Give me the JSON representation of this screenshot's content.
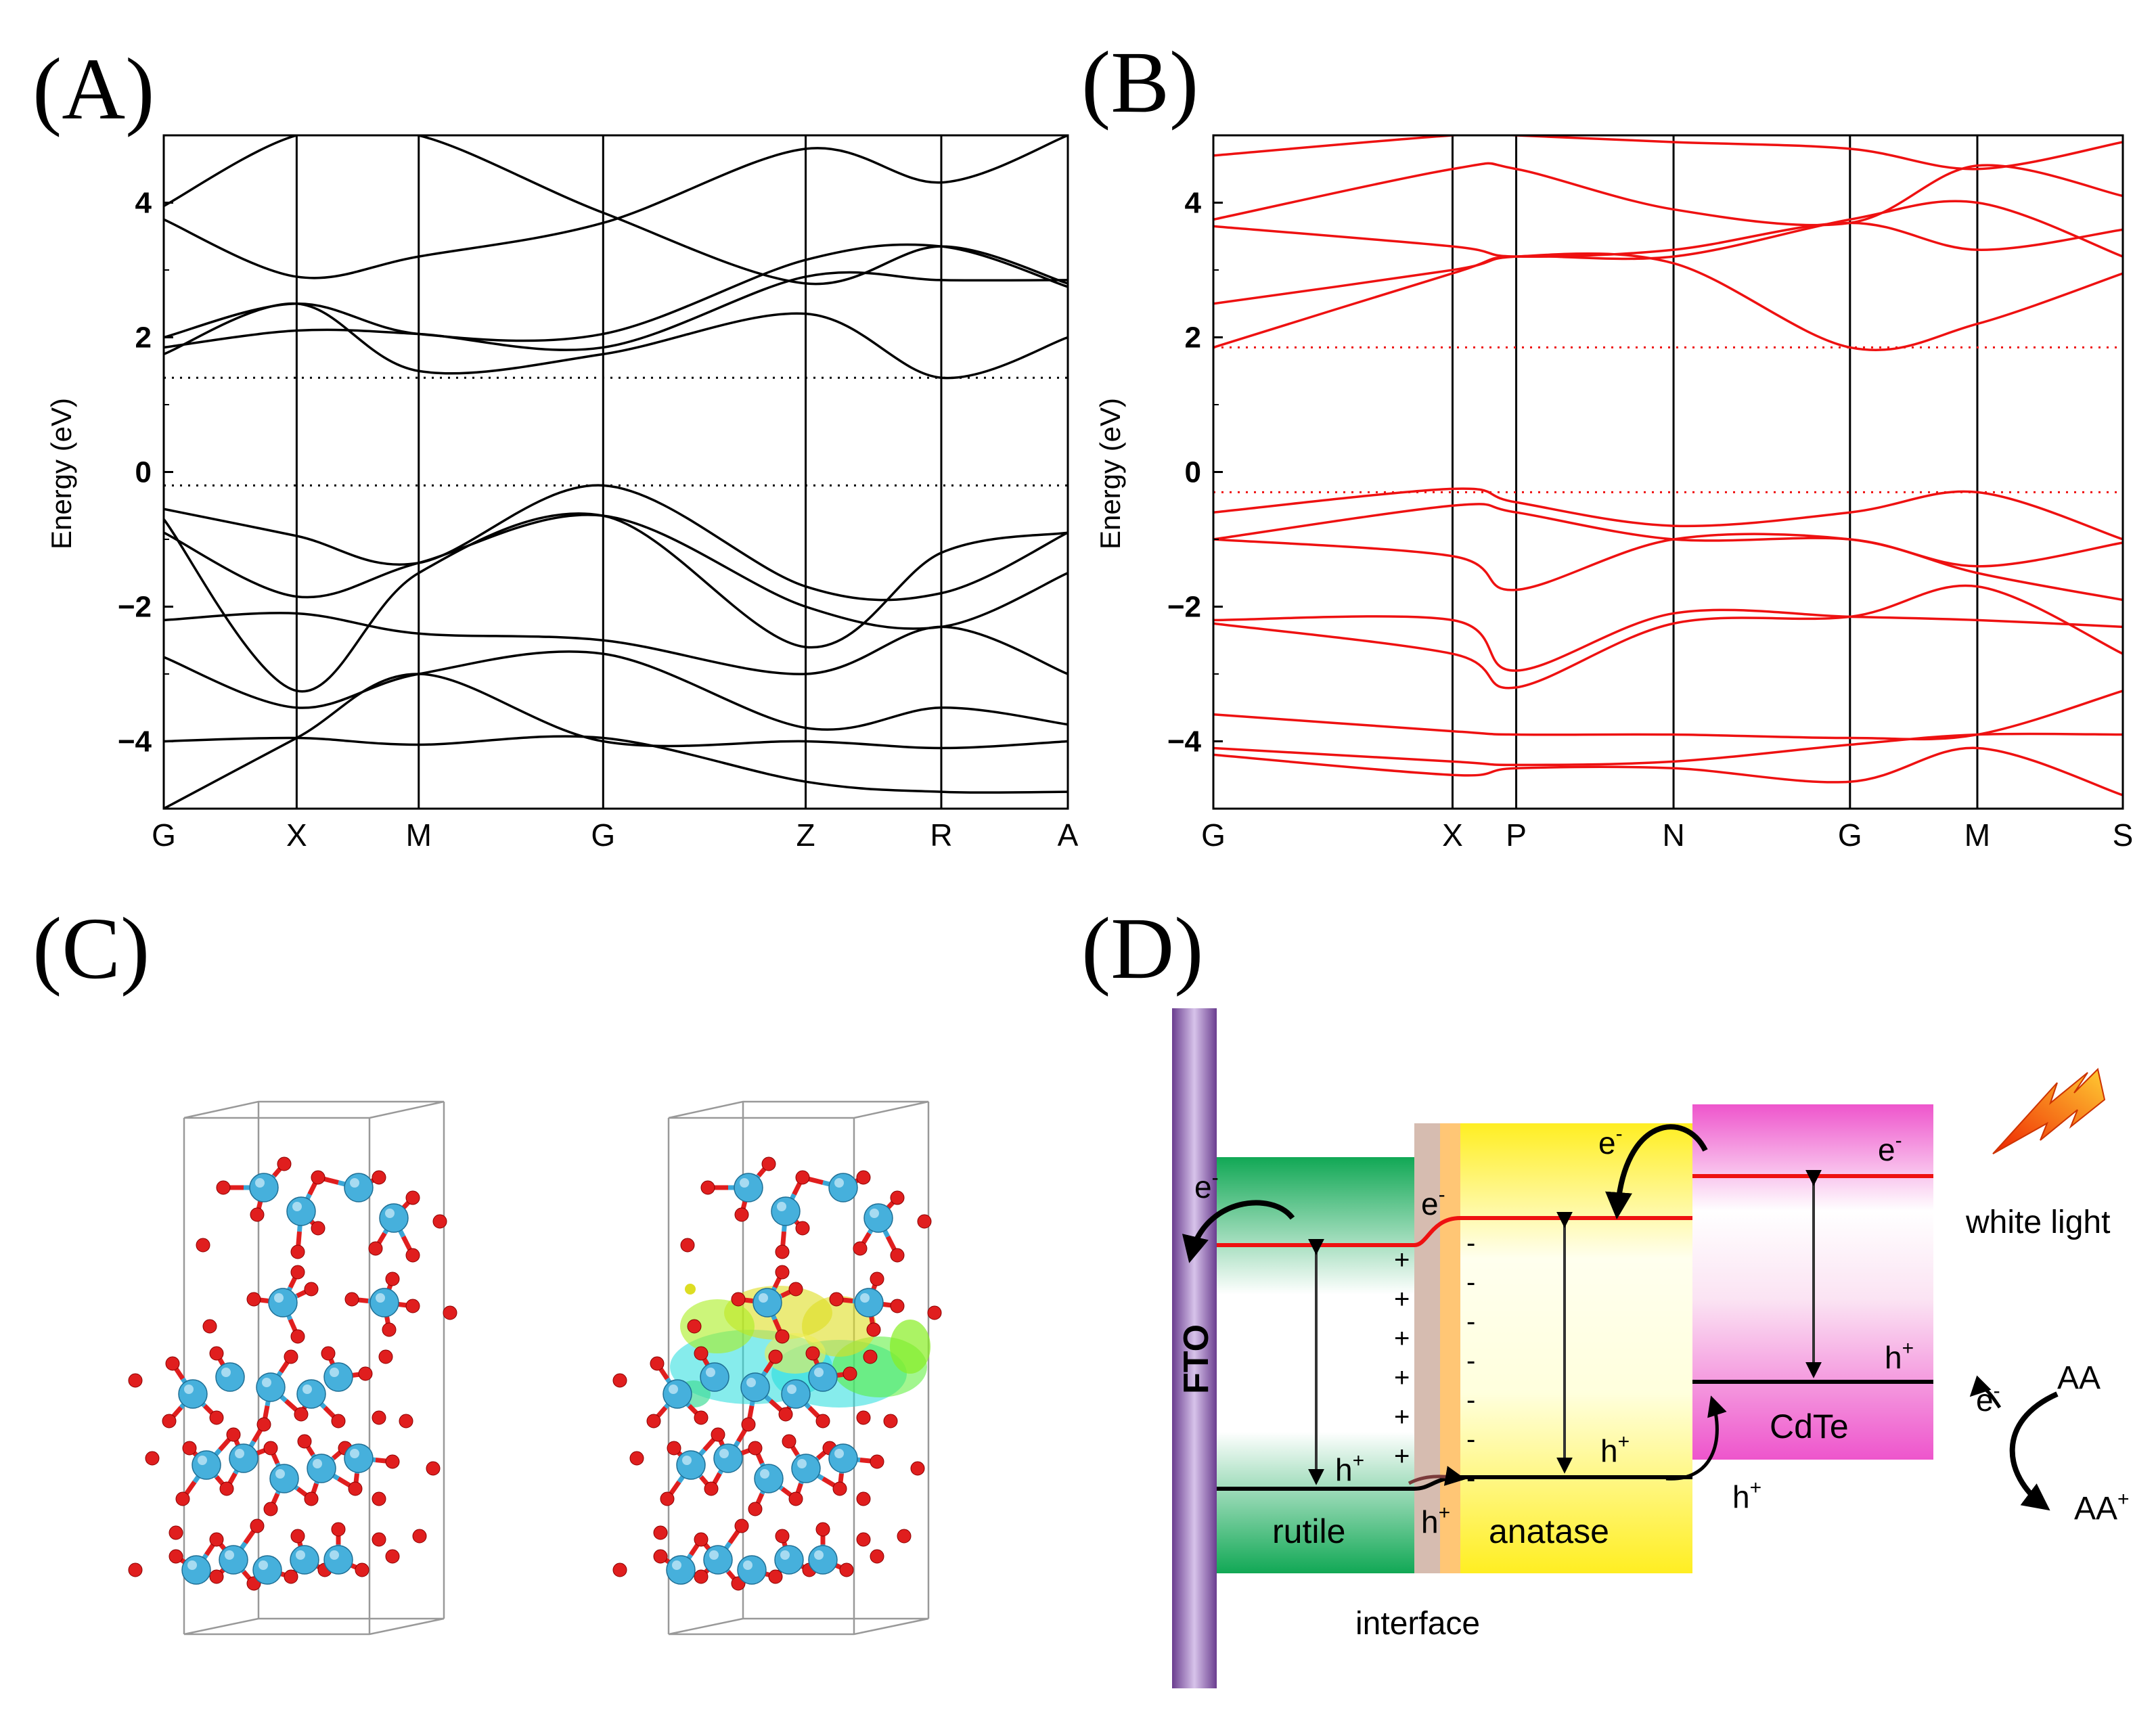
{
  "panels": {
    "a": {
      "label": "(A)"
    },
    "b": {
      "label": "(B)"
    },
    "c": {
      "label": "(C)"
    },
    "d": {
      "label": "(D)"
    }
  },
  "chart_data": [
    {
      "id": "band-structure-rutile",
      "type": "line",
      "title": "",
      "ylabel": "Energy (eV)",
      "xlabel": "",
      "ylim": [
        -5,
        5
      ],
      "yticks": [
        4,
        2,
        0,
        -2,
        -4
      ],
      "ytick_labels": [
        "4",
        "2",
        "0",
        "−2",
        "−4"
      ],
      "kpoints": [
        "G",
        "X",
        "M",
        "G",
        "Z",
        "R",
        "A"
      ],
      "kpoint_x": [
        0,
        0.147,
        0.282,
        0.486,
        0.71,
        0.86,
        1.0
      ],
      "fermi_lines": [
        1.4,
        -0.2
      ],
      "color": "#000000",
      "series": [
        {
          "name": "v1",
          "x": [
            0,
            0.147,
            0.282,
            0.486,
            0.71,
            0.86,
            1.0
          ],
          "y": [
            -0.55,
            -0.95,
            -1.35,
            -0.2,
            -1.7,
            -1.8,
            -0.9
          ]
        },
        {
          "name": "v2",
          "x": [
            0,
            0.147,
            0.282,
            0.486,
            0.71,
            0.86,
            1.0
          ],
          "y": [
            -0.9,
            -1.85,
            -1.35,
            -0.65,
            -2.0,
            -2.3,
            -1.5
          ]
        },
        {
          "name": "v3",
          "x": [
            0,
            0.147,
            0.282,
            0.486,
            0.71,
            0.86,
            1.0
          ],
          "y": [
            -0.7,
            -3.25,
            -1.5,
            -0.65,
            -2.6,
            -1.2,
            -0.9
          ]
        },
        {
          "name": "v4",
          "x": [
            0,
            0.147,
            0.282,
            0.486,
            0.71,
            0.86,
            1.0
          ],
          "y": [
            -2.2,
            -2.1,
            -2.4,
            -2.5,
            -3.0,
            -2.3,
            -3.0
          ]
        },
        {
          "name": "v5",
          "x": [
            0,
            0.147,
            0.282,
            0.486,
            0.71,
            0.86,
            1.0
          ],
          "y": [
            -2.75,
            -3.5,
            -3.0,
            -2.7,
            -3.8,
            -3.5,
            -3.75
          ]
        },
        {
          "name": "v6",
          "x": [
            0,
            0.147,
            0.282,
            0.486,
            0.71,
            0.86,
            1.0
          ],
          "y": [
            -4.0,
            -3.95,
            -4.05,
            -3.95,
            -4.6,
            -4.75,
            -4.75
          ]
        },
        {
          "name": "v7",
          "x": [
            0,
            0.147,
            0.282,
            0.486,
            0.71,
            0.86,
            1.0
          ],
          "y": [
            -5.0,
            -3.95,
            -3.0,
            -4.0,
            -4.0,
            -4.1,
            -4.0
          ]
        },
        {
          "name": "c1",
          "x": [
            0,
            0.147,
            0.282,
            0.486,
            0.71,
            0.86,
            1.0
          ],
          "y": [
            1.75,
            2.5,
            1.5,
            1.75,
            2.35,
            1.4,
            2.0
          ]
        },
        {
          "name": "c2",
          "x": [
            0,
            0.147,
            0.282,
            0.486,
            0.71,
            0.86,
            1.0
          ],
          "y": [
            1.85,
            2.1,
            2.05,
            1.85,
            2.9,
            2.85,
            2.85
          ]
        },
        {
          "name": "c3",
          "x": [
            0,
            0.147,
            0.282,
            0.486,
            0.71,
            0.86,
            1.0
          ],
          "y": [
            2.0,
            2.5,
            2.05,
            2.05,
            3.15,
            3.35,
            2.75
          ]
        },
        {
          "name": "c4",
          "x": [
            0,
            0.147,
            0.282,
            0.486,
            0.71,
            0.86,
            1.0
          ],
          "y": [
            3.75,
            2.9,
            3.2,
            3.7,
            4.8,
            4.3,
            5.0
          ]
        },
        {
          "name": "c5",
          "x": [
            0,
            0.147,
            0.282,
            0.486,
            0.71,
            0.86,
            1.0
          ],
          "y": [
            3.95,
            5.0,
            5.0,
            3.85,
            2.8,
            3.35,
            2.8
          ]
        }
      ]
    },
    {
      "id": "band-structure-anatase",
      "type": "line",
      "title": "",
      "ylabel": "Energy (eV)",
      "xlabel": "",
      "ylim": [
        -5,
        5
      ],
      "yticks": [
        4,
        2,
        0,
        -2,
        -4
      ],
      "ytick_labels": [
        "4",
        "2",
        "0",
        "−2",
        "−4"
      ],
      "kpoints": [
        "G",
        "X",
        "P",
        "N",
        "G",
        "M",
        "S"
      ],
      "kpoint_x": [
        0,
        0.263,
        0.333,
        0.506,
        0.7,
        0.84,
        1.0
      ],
      "fermi_lines": [
        1.85,
        -0.3
      ],
      "color": "#ee1111",
      "series": [
        {
          "name": "v1",
          "x": [
            0,
            0.263,
            0.333,
            0.506,
            0.7,
            0.84,
            1.0
          ],
          "y": [
            -0.6,
            -0.25,
            -0.45,
            -0.8,
            -0.6,
            -0.3,
            -1.0
          ]
        },
        {
          "name": "v2",
          "x": [
            0,
            0.263,
            0.333,
            0.506,
            0.7,
            0.84,
            1.0
          ],
          "y": [
            -1.0,
            -0.5,
            -0.6,
            -1.0,
            -1.0,
            -1.4,
            -1.05
          ]
        },
        {
          "name": "v3",
          "x": [
            0,
            0.263,
            0.333,
            0.506,
            0.7,
            0.84,
            1.0
          ],
          "y": [
            -1.0,
            -1.25,
            -1.75,
            -1.0,
            -1.0,
            -1.5,
            -1.9
          ]
        },
        {
          "name": "v4",
          "x": [
            0,
            0.263,
            0.333,
            0.506,
            0.7,
            0.84,
            1.0
          ],
          "y": [
            -2.2,
            -2.2,
            -2.95,
            -2.1,
            -2.15,
            -2.2,
            -2.3
          ]
        },
        {
          "name": "v5",
          "x": [
            0,
            0.263,
            0.333,
            0.506,
            0.7,
            0.84,
            1.0
          ],
          "y": [
            -2.25,
            -2.7,
            -3.2,
            -2.25,
            -2.15,
            -1.7,
            -2.7
          ]
        },
        {
          "name": "v6",
          "x": [
            0,
            0.263,
            0.333,
            0.506,
            0.7,
            0.84,
            1.0
          ],
          "y": [
            -3.6,
            -3.85,
            -3.9,
            -3.9,
            -3.95,
            -3.9,
            -3.25
          ]
        },
        {
          "name": "v7",
          "x": [
            0,
            0.263,
            0.333,
            0.506,
            0.7,
            0.84,
            1.0
          ],
          "y": [
            -4.1,
            -4.3,
            -4.35,
            -4.3,
            -4.05,
            -3.9,
            -3.9
          ]
        },
        {
          "name": "v8",
          "x": [
            0,
            0.263,
            0.333,
            0.506,
            0.7,
            0.84,
            1.0
          ],
          "y": [
            -4.2,
            -4.5,
            -4.4,
            -4.4,
            -4.6,
            -4.1,
            -4.8
          ]
        },
        {
          "name": "c1",
          "x": [
            0,
            0.263,
            0.333,
            0.506,
            0.7,
            0.84,
            1.0
          ],
          "y": [
            1.85,
            2.95,
            3.2,
            3.1,
            1.85,
            2.2,
            2.95
          ]
        },
        {
          "name": "c2",
          "x": [
            0,
            0.263,
            0.333,
            0.506,
            0.7,
            0.84,
            1.0
          ],
          "y": [
            2.5,
            3.0,
            3.2,
            3.2,
            3.75,
            4.0,
            3.2
          ]
        },
        {
          "name": "c3",
          "x": [
            0,
            0.263,
            0.333,
            0.506,
            0.7,
            0.84,
            1.0
          ],
          "y": [
            3.65,
            3.35,
            3.2,
            3.3,
            3.7,
            3.3,
            3.6
          ]
        },
        {
          "name": "c4",
          "x": [
            0,
            0.263,
            0.333,
            0.506,
            0.7,
            0.84,
            1.0
          ],
          "y": [
            3.75,
            4.5,
            4.5,
            3.9,
            3.7,
            4.55,
            4.1
          ]
        },
        {
          "name": "c5",
          "x": [
            0,
            0.263,
            0.333,
            0.506,
            0.7,
            0.84,
            1.0
          ],
          "y": [
            4.7,
            5.0,
            5.0,
            4.9,
            4.8,
            4.5,
            4.9
          ]
        }
      ]
    }
  ],
  "diagram": {
    "fto_label": "FTO",
    "rutile_label": "rutile",
    "anatase_label": "anatase",
    "cdte_label": "CdTe",
    "interface_label": "interface",
    "white_light_label": "white light",
    "electron": "e",
    "hole": "h",
    "minus_sup": "-",
    "plus_sup": "+",
    "aa_label": "AA",
    "aa_plus_label": "AA",
    "plus_signs": [
      "+",
      "+",
      "+",
      "+",
      "+",
      "+"
    ],
    "minus_signs": [
      "-",
      "-",
      "-",
      "-",
      "-",
      "-",
      "-"
    ],
    "colors": {
      "rutile": "#11a855",
      "anatase": "#ffee22",
      "cdte": "#ee55cc",
      "fto": "#8855aa",
      "band_red": "#ee1111"
    }
  }
}
